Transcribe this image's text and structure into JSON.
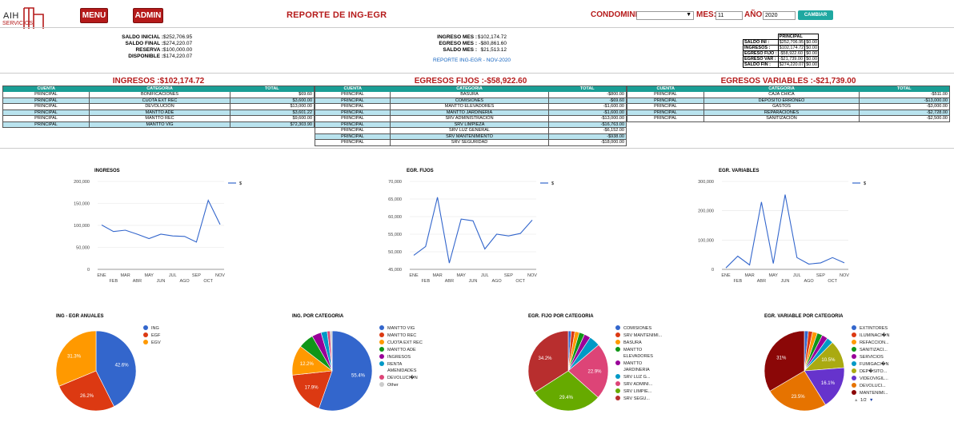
{
  "header": {
    "logo_text": "AIH",
    "logo_sub": "SERVICIOS",
    "menu_label": "MENU",
    "admin_label": "ADMIN",
    "title": "REPORTE DE ING-EGR",
    "condominio_label": "CONDOMINIO:",
    "mes_label": "MES:",
    "mes_value": "11",
    "anio_label": "AÑO:",
    "anio_value": "2020",
    "cambiar_label": "CAMBIAR"
  },
  "summary_left": [
    {
      "k": "SALDO INICIAL :",
      "v": "$252,706.95"
    },
    {
      "k": "SALDO FINAL :",
      "v": "$274,220.07"
    },
    {
      "k": "RESERVA :",
      "v": "$100,000.00"
    },
    {
      "k": "DISPONIBLE :",
      "v": "$174,220.07"
    }
  ],
  "summary_mid": [
    {
      "k": "INGRESO MES :",
      "v": "$102,174.72"
    },
    {
      "k": "EGRESO MES :",
      "v": "-$80,861.60"
    },
    {
      "k": "SALDO MES :",
      "v": "$21,513.12"
    }
  ],
  "report_link": "REPORTE ING-EGR - NOV-2020",
  "summary_table": {
    "header": "PRINCIPAL",
    "rows": [
      {
        "k": "SALDO INI :",
        "v": "$252,706.95",
        "z": "$0.00"
      },
      {
        "k": "INGRESOS :",
        "v": "$102,174.72",
        "z": "$0.00"
      },
      {
        "k": "EGRESO FIJO :",
        "v": "-$58,922.60",
        "z": "$0.00"
      },
      {
        "k": "EGRESO VAR :",
        "v": "-$21,739.00",
        "z": "$0.00"
      },
      {
        "k": "SALDO FIN :",
        "v": "$274,220.07",
        "z": "$0.00"
      }
    ]
  },
  "ingresos": {
    "title": "INGRESOS :$102,174.72",
    "cols": [
      "CUENTA",
      "CATEGORIA",
      "TOTAL"
    ],
    "rows": [
      [
        "PRINCIPAL",
        "BONIFICACIONES",
        "$69.60"
      ],
      [
        "PRINCIPAL",
        "CUOTA EXT REC",
        "$3,600.00"
      ],
      [
        "PRINCIPAL",
        "DEVOLUCIÓN",
        "$13,000.00"
      ],
      [
        "PRINCIPAL",
        "MANTTO ADE",
        "$3,601.22"
      ],
      [
        "PRINCIPAL",
        "MANTTO REC",
        "$9,600.00"
      ],
      [
        "PRINCIPAL",
        "MANTTO VIG",
        "$72,303.90"
      ]
    ]
  },
  "egresos_fijos": {
    "title": "EGRESOS FIJOS :-$58,922.60",
    "cols": [
      "CUENTA",
      "CATEGORIA",
      "TOTAL"
    ],
    "rows": [
      [
        "PRINCIPAL",
        "BASURA",
        "-$800.00"
      ],
      [
        "PRINCIPAL",
        "COMISIONES",
        "-$69.60"
      ],
      [
        "PRINCIPAL",
        "MANTTO ELEVADORES",
        "-$1,600.00"
      ],
      [
        "PRINCIPAL",
        "MANTTO JARDINERIA",
        "-$1,600.00"
      ],
      [
        "PRINCIPAL",
        "SRV ADMINISTRACIÓN",
        "-$13,000.00"
      ],
      [
        "PRINCIPAL",
        "SRV LIMPIEZA",
        "-$16,763.00"
      ],
      [
        "PRINCIPAL",
        "SRV LUZ GENERAL",
        "-$6,152.00"
      ],
      [
        "PRINCIPAL",
        "SRV MANTENIMIENTO",
        "-$938.00"
      ],
      [
        "PRINCIPAL",
        "SRV SEGURIDAD",
        "-$18,000.00"
      ]
    ]
  },
  "egresos_variables": {
    "title": "EGRESOS VARIABLES :-$21,739.00",
    "cols": [
      "CUENTA",
      "CATEGORIA",
      "TOTAL"
    ],
    "rows": [
      [
        "PRINCIPAL",
        "CAJA CHICA",
        "-$511.00"
      ],
      [
        "PRINCIPAL",
        "DEPÓSITO ERRÓNEO",
        "-$13,000.00"
      ],
      [
        "PRINCIPAL",
        "GASTOS",
        "-$3,000.00"
      ],
      [
        "PRINCIPAL",
        "REPARACIONES",
        "-$2,728.00"
      ],
      [
        "PRINCIPAL",
        "SANITIZACIÓN",
        "-$2,500.00"
      ]
    ]
  },
  "chart_data": [
    {
      "type": "line",
      "title": "INGRESOS",
      "legend": "$",
      "x": [
        "ENE",
        "FEB",
        "MAR",
        "ABR",
        "MAY",
        "JUN",
        "JUL",
        "AGO",
        "SEP",
        "OCT",
        "NOV"
      ],
      "values": [
        101000,
        86000,
        89000,
        80000,
        70000,
        80000,
        76000,
        75000,
        62000,
        157000,
        102000
      ],
      "ylim": [
        0,
        200000
      ],
      "yticks": [
        "0",
        "50,000",
        "100,000",
        "150,000",
        "200,000"
      ]
    },
    {
      "type": "line",
      "title": "EGR. FIJOS",
      "legend": "$",
      "x": [
        "ENE",
        "FEB",
        "MAR",
        "ABR",
        "MAY",
        "JUN",
        "JUL",
        "AGO",
        "SEP",
        "OCT",
        "NOV"
      ],
      "values": [
        49000,
        51500,
        65500,
        46800,
        59300,
        58800,
        50800,
        55000,
        54500,
        55200,
        59000
      ],
      "ylim": [
        45000,
        70000
      ],
      "yticks": [
        "45,000",
        "50,000",
        "55,000",
        "60,000",
        "65,000",
        "70,000"
      ]
    },
    {
      "type": "line",
      "title": "EGR. VARIABLES",
      "legend": "$",
      "x": [
        "ENE",
        "FEB",
        "MAR",
        "ABR",
        "MAY",
        "JUN",
        "JUL",
        "AGO",
        "SEP",
        "OCT",
        "NOV"
      ],
      "values": [
        5000,
        45000,
        15000,
        230000,
        20000,
        255000,
        40000,
        18000,
        22000,
        40000,
        22000
      ],
      "ylim": [
        0,
        300000
      ],
      "yticks": [
        "0",
        "100,000",
        "200,000",
        "300,000"
      ]
    },
    {
      "type": "pie",
      "title": "ING - EGR ANUALES",
      "labels": [
        "ING",
        "EGF",
        "EGV"
      ],
      "values": [
        42.6,
        26.2,
        31.3
      ],
      "colors": [
        "#3366cc",
        "#dc3912",
        "#ff9900"
      ],
      "show": [
        "42.6%",
        "26.2%",
        "31.3%"
      ]
    },
    {
      "type": "pie",
      "title": "ING. POR CATEGORIA",
      "labels": [
        "MANTTO VIG",
        "MANTTO REC",
        "CUOTA EXT REC",
        "MANTTO ADE",
        "INGRESOS",
        "RENTA AMENIDADES",
        "DEVOLUCI�N",
        "Other"
      ],
      "values": [
        55.4,
        17.9,
        12.2,
        6.2,
        3.8,
        2.5,
        1.2,
        0.8
      ],
      "colors": [
        "#3366cc",
        "#dc3912",
        "#ff9900",
        "#109618",
        "#990099",
        "#0099c6",
        "#dd4477",
        "#cccccc"
      ],
      "show": [
        "55.4%",
        "17.9%",
        "12.2%",
        "",
        "",
        "",
        "",
        ""
      ]
    },
    {
      "type": "pie",
      "title": "EGR. FIJO POR CATEGORIA",
      "labels": [
        "COMISIONES",
        "SRV MANTENIMI...",
        "BASURA",
        "MANTTO ELEVADORES",
        "MANTTO JARDINERIA",
        "SRV LUZ G...",
        "SRV ADMINI...",
        "SRV LIMPIE...",
        "SRV SEGU..."
      ],
      "values": [
        1.2,
        1.5,
        1.8,
        2.2,
        2.6,
        4.5,
        22.9,
        29.4,
        34.2
      ],
      "colors": [
        "#3366cc",
        "#dc3912",
        "#ff9900",
        "#109618",
        "#990099",
        "#0099c6",
        "#dd4477",
        "#66aa00",
        "#b82e2e"
      ],
      "show": [
        "",
        "",
        "",
        "",
        "",
        "",
        "22.9%",
        "29.4%",
        "34.2%"
      ]
    },
    {
      "type": "pie",
      "title": "EGR. VARIABLE POR CATEGORIA",
      "labels": [
        "EXTINTORES",
        "ILUMINACI�N",
        "REFACCION...",
        "SANITIZACI...",
        "SERVICIOS",
        "FUMIGACI�N",
        "DEP�SITO...",
        "VIDEOVIGIL...",
        "DEVOLUCI...",
        "MANTENIMI..."
      ],
      "values": [
        1.5,
        1.6,
        1.8,
        2.0,
        2.2,
        2.4,
        10.5,
        16.1,
        23.5,
        31.0
      ],
      "colors": [
        "#3366cc",
        "#dc3912",
        "#ff9900",
        "#109618",
        "#990099",
        "#0099c6",
        "#aaaa11",
        "#6633cc",
        "#e67300",
        "#8b0707"
      ],
      "show": [
        "",
        "",
        "",
        "",
        "",
        "",
        "10.5%",
        "16.1%",
        "23.5%",
        "31%"
      ],
      "pager": "1/2"
    }
  ]
}
